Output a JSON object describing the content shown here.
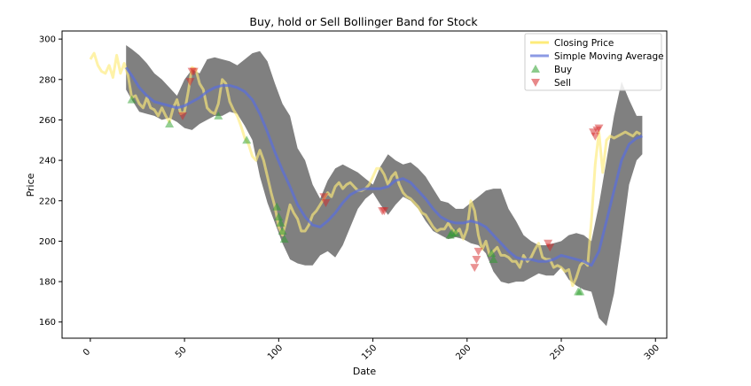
{
  "chart_data": {
    "type": "line",
    "title": "Buy, hold  or Sell Bollinger Band for Stock",
    "xlabel": "Date",
    "ylabel": "Price",
    "xlim": [
      -15,
      306
    ],
    "ylim": [
      152,
      304
    ],
    "xticks": [
      0,
      50,
      100,
      150,
      200,
      250,
      300
    ],
    "yticks": [
      160,
      180,
      200,
      220,
      240,
      260,
      280,
      300
    ],
    "grid": false,
    "legend_position": "top-right",
    "colors": {
      "close": "#fdeb7a",
      "sma": "#5b6fd8",
      "band": "#808080",
      "buy": "#2ca02c",
      "sell": "#d62728"
    },
    "series": [
      {
        "name": "Closing Price",
        "x": [
          0,
          2,
          4,
          6,
          8,
          10,
          12,
          14,
          16,
          18,
          20,
          22,
          24,
          26,
          28,
          30,
          32,
          34,
          36,
          38,
          40,
          42,
          44,
          46,
          48,
          50,
          52,
          54,
          56,
          58,
          60,
          62,
          64,
          66,
          68,
          70,
          72,
          74,
          76,
          78,
          80,
          82,
          84,
          86,
          88,
          90,
          92,
          94,
          96,
          98,
          100,
          102,
          104,
          106,
          108,
          110,
          112,
          114,
          116,
          118,
          120,
          122,
          124,
          126,
          128,
          130,
          132,
          134,
          136,
          138,
          140,
          142,
          144,
          146,
          148,
          150,
          152,
          154,
          156,
          158,
          160,
          162,
          164,
          166,
          168,
          170,
          172,
          174,
          176,
          178,
          180,
          182,
          184,
          186,
          188,
          190,
          192,
          194,
          196,
          198,
          200,
          202,
          204,
          206,
          208,
          210,
          212,
          214,
          216,
          218,
          220,
          222,
          224,
          226,
          228,
          230,
          232,
          234,
          236,
          238,
          240,
          242,
          244,
          246,
          248,
          250,
          252,
          254,
          256,
          258,
          260,
          262,
          264,
          266,
          268,
          270,
          272,
          274,
          276,
          278,
          280,
          282,
          284,
          286,
          288,
          290,
          292
        ],
        "values": [
          290,
          293,
          287,
          284,
          283,
          287,
          281,
          292,
          283,
          288,
          282,
          271,
          272,
          268,
          266,
          271,
          266,
          265,
          262,
          266,
          262,
          259,
          266,
          270,
          263,
          264,
          274,
          286,
          285,
          278,
          275,
          266,
          264,
          263,
          268,
          280,
          278,
          269,
          265,
          262,
          257,
          251,
          248,
          242,
          240,
          245,
          240,
          232,
          224,
          217,
          207,
          203,
          210,
          218,
          214,
          211,
          205,
          205,
          208,
          213,
          215,
          218,
          221,
          224,
          222,
          227,
          229,
          226,
          228,
          229,
          227,
          225,
          225,
          226,
          228,
          232,
          236,
          236,
          233,
          228,
          232,
          234,
          228,
          224,
          222,
          221,
          219,
          217,
          214,
          213,
          210,
          207,
          205,
          206,
          206,
          209,
          206,
          204,
          206,
          201,
          206,
          220,
          215,
          203,
          196,
          200,
          193,
          195,
          197,
          193,
          193,
          192,
          190,
          190,
          187,
          193,
          190,
          192,
          196,
          199,
          192,
          191,
          191,
          187,
          188,
          187,
          185,
          186,
          178,
          182,
          188,
          190,
          188,
          210,
          238,
          254,
          234,
          250,
          252,
          251,
          252,
          253,
          254,
          253,
          252,
          254,
          253
        ]
      },
      {
        "name": "Simple Moving Average",
        "x": [
          19,
          22,
          26,
          30,
          34,
          38,
          42,
          46,
          50,
          54,
          58,
          62,
          66,
          70,
          74,
          78,
          82,
          86,
          90,
          94,
          98,
          102,
          106,
          110,
          114,
          118,
          122,
          126,
          130,
          134,
          138,
          142,
          146,
          150,
          154,
          158,
          162,
          166,
          170,
          174,
          178,
          182,
          186,
          190,
          194,
          198,
          202,
          206,
          210,
          214,
          218,
          222,
          226,
          230,
          234,
          238,
          242,
          246,
          250,
          254,
          258,
          262,
          266,
          270,
          274,
          278,
          282,
          286,
          290,
          293
        ],
        "values": [
          286,
          282,
          276,
          272,
          269,
          268,
          267,
          266,
          267,
          269,
          271,
          274,
          276,
          277,
          277,
          276,
          274,
          270,
          263,
          254,
          244,
          235,
          227,
          218,
          212,
          208,
          207,
          210,
          214,
          219,
          223,
          225,
          226,
          226,
          226,
          227,
          230,
          231,
          229,
          225,
          221,
          216,
          212,
          210,
          209,
          209,
          210,
          209,
          207,
          203,
          199,
          195,
          192,
          191,
          191,
          190,
          190,
          191,
          193,
          192,
          191,
          190,
          188,
          195,
          210,
          225,
          240,
          248,
          251,
          252
        ]
      }
    ],
    "bands": {
      "x": [
        19,
        22,
        26,
        30,
        34,
        38,
        42,
        46,
        50,
        54,
        58,
        62,
        66,
        70,
        74,
        78,
        82,
        86,
        90,
        94,
        98,
        102,
        106,
        110,
        114,
        118,
        122,
        126,
        130,
        134,
        138,
        142,
        146,
        150,
        154,
        158,
        162,
        166,
        170,
        174,
        178,
        182,
        186,
        190,
        194,
        198,
        202,
        206,
        210,
        214,
        218,
        222,
        226,
        230,
        234,
        238,
        242,
        246,
        250,
        254,
        258,
        262,
        266,
        270,
        274,
        278,
        282,
        286,
        290,
        293
      ],
      "upper": [
        297,
        295,
        292,
        288,
        283,
        280,
        276,
        272,
        280,
        285,
        283,
        290,
        291,
        290,
        289,
        287,
        290,
        293,
        294,
        289,
        278,
        268,
        262,
        246,
        240,
        228,
        221,
        230,
        236,
        238,
        236,
        234,
        231,
        228,
        237,
        243,
        240,
        238,
        239,
        236,
        232,
        226,
        220,
        219,
        216,
        216,
        219,
        222,
        225,
        226,
        226,
        216,
        210,
        203,
        200,
        198,
        198,
        199,
        200,
        203,
        204,
        203,
        200,
        218,
        240,
        262,
        279,
        270,
        262,
        262
      ],
      "lower": [
        275,
        270,
        264,
        263,
        262,
        260,
        261,
        259,
        256,
        255,
        258,
        260,
        262,
        262,
        264,
        263,
        257,
        250,
        232,
        219,
        209,
        199,
        191,
        189,
        188,
        188,
        193,
        195,
        192,
        198,
        207,
        216,
        221,
        224,
        218,
        213,
        218,
        222,
        220,
        216,
        210,
        205,
        203,
        201,
        202,
        201,
        199,
        198,
        194,
        185,
        180,
        179,
        180,
        180,
        182,
        184,
        183,
        183,
        187,
        181,
        178,
        176,
        175,
        162,
        158,
        174,
        200,
        228,
        240,
        243
      ]
    },
    "buy_signals": {
      "name": "Buy",
      "points": [
        [
          22,
          270
        ],
        [
          42,
          258
        ],
        [
          68,
          262
        ],
        [
          83,
          250
        ],
        [
          99,
          217
        ],
        [
          100,
          212
        ],
        [
          101,
          209
        ],
        [
          102,
          205
        ],
        [
          103,
          201
        ],
        [
          191,
          203
        ],
        [
          192,
          204
        ],
        [
          194,
          204
        ],
        [
          213,
          194
        ],
        [
          214,
          191
        ],
        [
          259,
          175
        ],
        [
          260,
          175
        ]
      ]
    },
    "sell_signals": {
      "name": "Sell",
      "points": [
        [
          49,
          262
        ],
        [
          53,
          279
        ],
        [
          54,
          284
        ],
        [
          55,
          284
        ],
        [
          124,
          222
        ],
        [
          125,
          219
        ],
        [
          155,
          215
        ],
        [
          156,
          215
        ],
        [
          204,
          187
        ],
        [
          205,
          191
        ],
        [
          206,
          195
        ],
        [
          243,
          199
        ],
        [
          244,
          197
        ],
        [
          267,
          254
        ],
        [
          268,
          252
        ],
        [
          269,
          255
        ],
        [
          270,
          256
        ]
      ]
    }
  }
}
